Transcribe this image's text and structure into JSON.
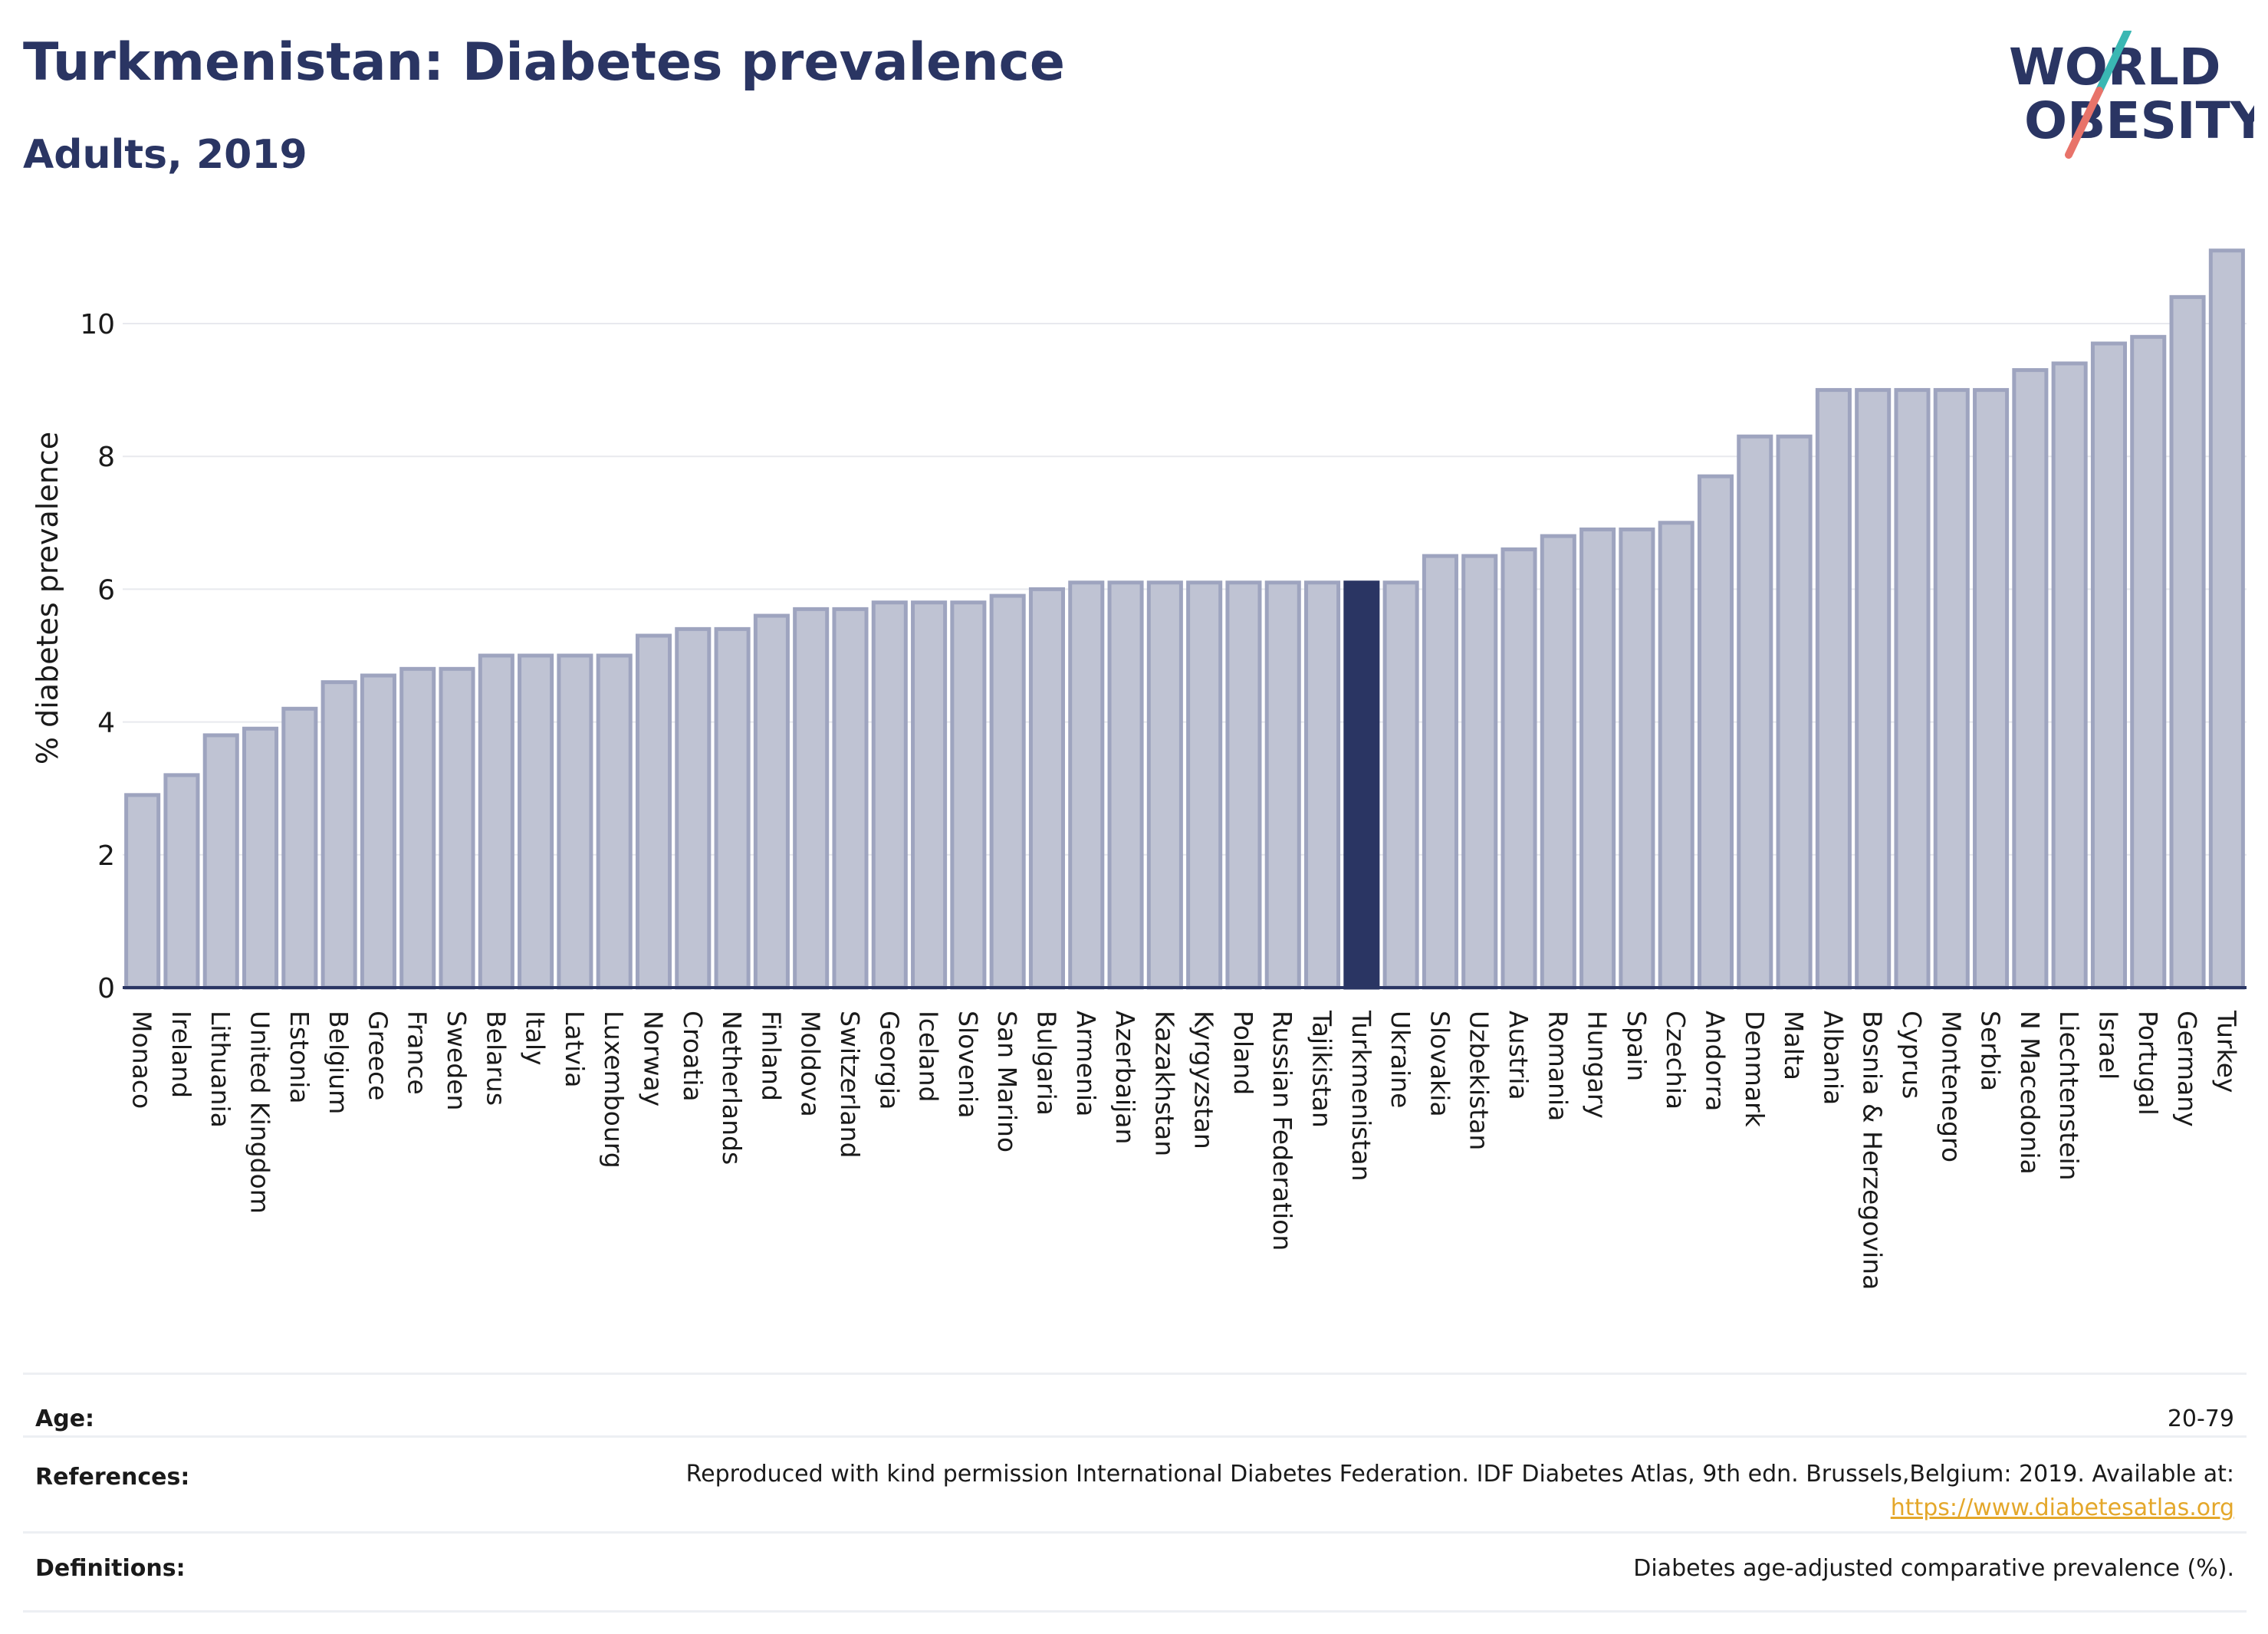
{
  "header": {
    "title": "Turkmenistan: Diabetes prevalence",
    "subtitle": "Adults, 2019"
  },
  "logo": {
    "line1": "WORLD",
    "line2": "OBESITY",
    "accent_teal": "#3ab7b3",
    "accent_coral": "#e8736a"
  },
  "colors": {
    "bar": "#bfc3d3",
    "bar_stroke": "#9ea4bf",
    "highlight": "#2a3563",
    "grid": "#e8e9ee",
    "axis": "#2a3563"
  },
  "chart_data": {
    "type": "bar",
    "title": "Turkmenistan: Diabetes prevalence",
    "subtitle": "Adults, 2019",
    "ylabel": "% diabetes prevalence",
    "xlabel": "",
    "ylim": [
      0,
      11.5
    ],
    "yticks": [
      0,
      2,
      4,
      6,
      8,
      10
    ],
    "grid": true,
    "highlight": "Turkmenistan",
    "categories": [
      "Monaco",
      "Ireland",
      "Lithuania",
      "United Kingdom",
      "Estonia",
      "Belgium",
      "Greece",
      "France",
      "Sweden",
      "Belarus",
      "Italy",
      "Latvia",
      "Luxembourg",
      "Norway",
      "Croatia",
      "Netherlands",
      "Finland",
      "Moldova",
      "Switzerland",
      "Georgia",
      "Iceland",
      "Slovenia",
      "San Marino",
      "Bulgaria",
      "Armenia",
      "Azerbaijan",
      "Kazakhstan",
      "Kyrgyzstan",
      "Poland",
      "Russian Federation",
      "Tajikistan",
      "Turkmenistan",
      "Ukraine",
      "Slovakia",
      "Uzbekistan",
      "Austria",
      "Romania",
      "Hungary",
      "Spain",
      "Czechia",
      "Andorra",
      "Denmark",
      "Malta",
      "Albania",
      "Bosnia & Herzegovina",
      "Cyprus",
      "Montenegro",
      "Serbia",
      "N Macedonia",
      "Liechtenstein",
      "Israel",
      "Portugal",
      "Germany",
      "Turkey"
    ],
    "values": [
      2.9,
      3.2,
      3.8,
      3.9,
      4.2,
      4.6,
      4.7,
      4.8,
      4.8,
      5.0,
      5.0,
      5.0,
      5.0,
      5.3,
      5.4,
      5.4,
      5.6,
      5.7,
      5.7,
      5.8,
      5.8,
      5.8,
      5.9,
      6.0,
      6.1,
      6.1,
      6.1,
      6.1,
      6.1,
      6.1,
      6.1,
      6.1,
      6.1,
      6.5,
      6.5,
      6.6,
      6.8,
      6.9,
      6.9,
      7.0,
      7.7,
      8.3,
      8.3,
      9.0,
      9.0,
      9.0,
      9.0,
      9.0,
      9.3,
      9.4,
      9.7,
      9.8,
      10.4,
      11.1
    ]
  },
  "meta": {
    "age_label": "Age:",
    "age_value": "20-79",
    "references_label": "References:",
    "references_text": "Reproduced with kind permission International Diabetes Federation. IDF Diabetes Atlas, 9th edn. Brussels,Belgium: 2019. Available at:",
    "references_link": "https://www.diabetesatlas.org",
    "definitions_label": "Definitions:",
    "definitions_value": "Diabetes age-adjusted comparative prevalence (%)."
  }
}
